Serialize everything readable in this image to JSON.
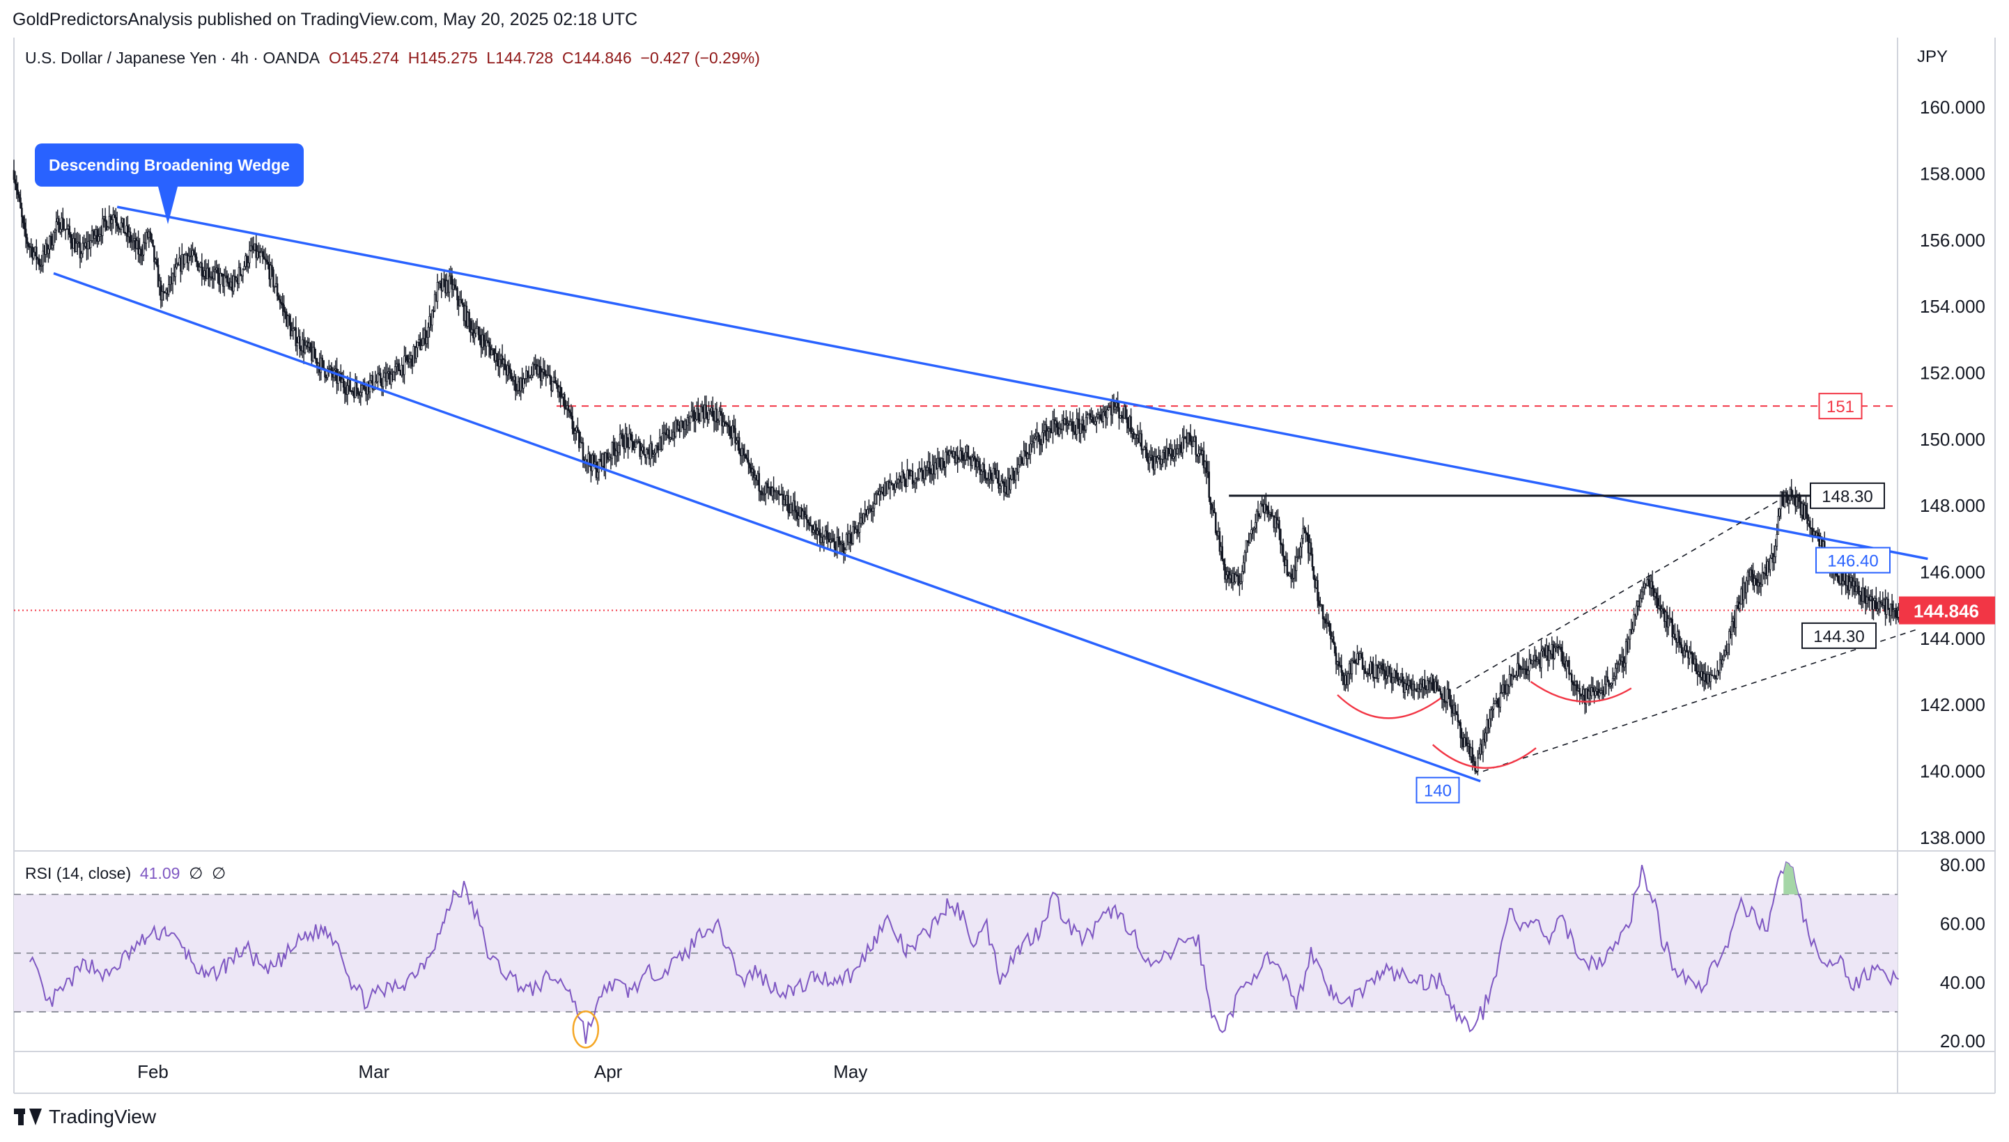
{
  "header": {
    "published": "GoldPredictorsAnalysis published on TradingView.com, May 20, 2025 02:18 UTC"
  },
  "legend": {
    "symbol": "U.S. Dollar / Japanese Yen · 4h · OANDA",
    "open": "O145.274",
    "high": "H145.275",
    "low": "L144.728",
    "close": "C144.846",
    "change": "−0.427 (−0.29%)"
  },
  "rsi_legend": {
    "label": "RSI (14, close)",
    "value": "41.09",
    "extra1": "∅",
    "extra2": "∅"
  },
  "price_axis": {
    "currency": "JPY"
  },
  "callout": {
    "text": "Descending Broadening Wedge"
  },
  "branding": {
    "logo_text": "TradingView"
  },
  "colors": {
    "up": "#089981",
    "down": "#f23645",
    "candle_body": "#131722",
    "wedge": "#2962ff",
    "resistance": "#131722",
    "dashed_level": "#f23645",
    "rsi_line": "#7e57c2",
    "rsi_band": "#ede7f6",
    "current_price": "#f23645",
    "rounded_bottom": "#f23645",
    "rsi_circle": "#f5a623",
    "rsi_overbought_fill": "#a5d6a7"
  },
  "chart_data": [
    {
      "type": "candlestick",
      "title": "U.S. Dollar / Japanese Yen · 4h · OANDA",
      "x_tick_labels": [
        "Feb",
        "Mar",
        "Apr",
        "May"
      ],
      "y_tick_labels": [
        "160.000",
        "158.000",
        "156.000",
        "154.000",
        "152.000",
        "150.000",
        "148.000",
        "146.000",
        "144.000",
        "142.000",
        "140.000",
        "138.000"
      ],
      "ylim": [
        137.6,
        162.1
      ],
      "last_price": 144.846,
      "last_price_label": "144.846",
      "path_points": [
        [
          0,
          158.1
        ],
        [
          8,
          156.1
        ],
        [
          20,
          155.3
        ],
        [
          35,
          156.6
        ],
        [
          50,
          155.6
        ],
        [
          75,
          156.8
        ],
        [
          95,
          155.6
        ],
        [
          102,
          156.2
        ],
        [
          112,
          154.2
        ],
        [
          130,
          155.6
        ],
        [
          145,
          155.1
        ],
        [
          165,
          154.6
        ],
        [
          180,
          155.7
        ],
        [
          192,
          155.2
        ],
        [
          210,
          153.2
        ],
        [
          235,
          152.1
        ],
        [
          255,
          151.5
        ],
        [
          280,
          151.8
        ],
        [
          300,
          152.4
        ],
        [
          312,
          153.2
        ],
        [
          320,
          154.5
        ],
        [
          330,
          154.7
        ],
        [
          345,
          153.4
        ],
        [
          365,
          152.5
        ],
        [
          380,
          151.6
        ],
        [
          395,
          152.1
        ],
        [
          410,
          151.6
        ],
        [
          420,
          150.6
        ],
        [
          430,
          149.6
        ],
        [
          440,
          149.1
        ],
        [
          460,
          150.0
        ],
        [
          480,
          149.6
        ],
        [
          500,
          150.3
        ],
        [
          510,
          150.5
        ],
        [
          520,
          150.9
        ],
        [
          530,
          150.7
        ],
        [
          545,
          150.1
        ],
        [
          555,
          149.0
        ],
        [
          570,
          148.4
        ],
        [
          590,
          147.9
        ],
        [
          610,
          147.1
        ],
        [
          625,
          146.7
        ],
        [
          640,
          147.5
        ],
        [
          660,
          148.6
        ],
        [
          680,
          148.9
        ],
        [
          700,
          149.3
        ],
        [
          720,
          149.6
        ],
        [
          735,
          149.0
        ],
        [
          750,
          148.6
        ],
        [
          770,
          149.9
        ],
        [
          785,
          150.4
        ],
        [
          800,
          150.3
        ],
        [
          815,
          150.6
        ],
        [
          830,
          151.0
        ],
        [
          840,
          150.7
        ],
        [
          850,
          150.0
        ],
        [
          860,
          149.3
        ],
        [
          875,
          149.6
        ],
        [
          890,
          150.0
        ],
        [
          900,
          149.3
        ],
        [
          905,
          148.0
        ],
        [
          915,
          146.0
        ],
        [
          925,
          145.6
        ],
        [
          935,
          147.4
        ],
        [
          945,
          148.1
        ],
        [
          955,
          147.3
        ],
        [
          965,
          145.6
        ],
        [
          975,
          147.5
        ],
        [
          985,
          145.3
        ],
        [
          995,
          144.0
        ],
        [
          1005,
          142.7
        ],
        [
          1015,
          143.4
        ],
        [
          1025,
          143.1
        ],
        [
          1040,
          142.9
        ],
        [
          1055,
          142.5
        ],
        [
          1070,
          142.7
        ],
        [
          1085,
          142.2
        ],
        [
          1095,
          140.8
        ],
        [
          1105,
          140.2
        ],
        [
          1115,
          141.6
        ],
        [
          1125,
          142.4
        ],
        [
          1135,
          143.0
        ],
        [
          1150,
          143.3
        ],
        [
          1165,
          143.7
        ],
        [
          1175,
          143.1
        ],
        [
          1185,
          142.2
        ],
        [
          1200,
          142.5
        ],
        [
          1215,
          143.2
        ],
        [
          1225,
          144.8
        ],
        [
          1235,
          145.8
        ],
        [
          1245,
          144.9
        ],
        [
          1255,
          144.1
        ],
        [
          1270,
          143.2
        ],
        [
          1280,
          142.7
        ],
        [
          1290,
          143.3
        ],
        [
          1300,
          144.6
        ],
        [
          1310,
          145.9
        ],
        [
          1320,
          145.6
        ],
        [
          1330,
          146.6
        ],
        [
          1335,
          148.2
        ],
        [
          1345,
          148.3
        ],
        [
          1355,
          147.6
        ],
        [
          1365,
          147.0
        ],
        [
          1375,
          146.0
        ],
        [
          1390,
          145.6
        ],
        [
          1400,
          145.2
        ],
        [
          1410,
          145.0
        ],
        [
          1424,
          144.8
        ]
      ],
      "wedge_upper": {
        "from": [
          78,
          157.0
        ],
        "to": [
          1446,
          146.4
        ],
        "label": "146.40"
      },
      "wedge_lower": {
        "from": [
          30,
          155.0
        ],
        "to": [
          1108,
          139.7
        ],
        "label": "140"
      },
      "resistance": {
        "from": [
          918,
          148.3
        ],
        "to": [
          1410,
          148.3
        ],
        "label": "148.30"
      },
      "dashed_level": {
        "from": [
          410,
          151.0
        ],
        "to": [
          1420,
          151.0
        ],
        "label": "151"
      },
      "channel_upper": {
        "from": [
          1090,
          142.5
        ],
        "to": [
          1335,
          148.2
        ]
      },
      "channel_lower": {
        "from": [
          1110,
          140.0
        ],
        "to": [
          1440,
          144.3
        ],
        "label": "144.30"
      },
      "rounded_bottoms": [
        {
          "from": [
            1000,
            142.3
          ],
          "bottom": [
            1035,
            141.6
          ],
          "to": [
            1078,
            142.2
          ]
        },
        {
          "from": [
            1072,
            140.8
          ],
          "bottom": [
            1110,
            140.1
          ],
          "to": [
            1150,
            140.7
          ]
        },
        {
          "from": [
            1146,
            142.7
          ],
          "bottom": [
            1185,
            142.1
          ],
          "to": [
            1222,
            142.5
          ]
        }
      ]
    },
    {
      "type": "line",
      "title": "RSI (14, close)",
      "current_value": 41.09,
      "ylim": [
        16.5,
        84.8
      ],
      "y_tick_labels": [
        "80.00",
        "60.00",
        "40.00",
        "20.00"
      ],
      "levels": [
        70,
        50,
        30
      ],
      "series": [
        {
          "name": "RSI (14, close)",
          "points": [
            [
              12,
              50
            ],
            [
              25,
              32
            ],
            [
              40,
              39
            ],
            [
              55,
              47
            ],
            [
              70,
              42
            ],
            [
              85,
              49
            ],
            [
              100,
              55
            ],
            [
              115,
              58
            ],
            [
              130,
              50
            ],
            [
              145,
              41
            ],
            [
              160,
              46
            ],
            [
              175,
              52
            ],
            [
              190,
              43
            ],
            [
              205,
              49
            ],
            [
              220,
              56
            ],
            [
              235,
              58
            ],
            [
              245,
              54
            ],
            [
              255,
              40
            ],
            [
              265,
              34
            ],
            [
              280,
              37
            ],
            [
              295,
              40
            ],
            [
              310,
              47
            ],
            [
              325,
              60
            ],
            [
              332,
              70
            ],
            [
              340,
              72
            ],
            [
              350,
              62
            ],
            [
              360,
              48
            ],
            [
              375,
              42
            ],
            [
              390,
              37
            ],
            [
              405,
              42
            ],
            [
              420,
              38
            ],
            [
              432,
              22
            ],
            [
              440,
              31
            ],
            [
              450,
              40
            ],
            [
              465,
              37
            ],
            [
              480,
              43
            ],
            [
              495,
              45
            ],
            [
              510,
              51
            ],
            [
              520,
              58
            ],
            [
              530,
              60
            ],
            [
              540,
              52
            ],
            [
              550,
              40
            ],
            [
              560,
              44
            ],
            [
              575,
              38
            ],
            [
              590,
              37
            ],
            [
              605,
              42
            ],
            [
              620,
              41
            ],
            [
              635,
              43
            ],
            [
              650,
              55
            ],
            [
              660,
              61
            ],
            [
              675,
              50
            ],
            [
              690,
              57
            ],
            [
              705,
              66
            ],
            [
              715,
              64
            ],
            [
              725,
              54
            ],
            [
              735,
              59
            ],
            [
              745,
              42
            ],
            [
              760,
              52
            ],
            [
              775,
              58
            ],
            [
              785,
              70
            ],
            [
              795,
              61
            ],
            [
              805,
              55
            ],
            [
              815,
              57
            ],
            [
              830,
              65
            ],
            [
              845,
              58
            ],
            [
              855,
              45
            ],
            [
              870,
              48
            ],
            [
              885,
              55
            ],
            [
              895,
              54
            ],
            [
              905,
              28
            ],
            [
              915,
              25
            ],
            [
              925,
              35
            ],
            [
              935,
              42
            ],
            [
              945,
              48
            ],
            [
              955,
              44
            ],
            [
              970,
              33
            ],
            [
              980,
              51
            ],
            [
              995,
              37
            ],
            [
              1005,
              32
            ],
            [
              1020,
              38
            ],
            [
              1035,
              44
            ],
            [
              1050,
              42
            ],
            [
              1065,
              40
            ],
            [
              1080,
              41
            ],
            [
              1090,
              28
            ],
            [
              1100,
              25
            ],
            [
              1110,
              30
            ],
            [
              1120,
              45
            ],
            [
              1130,
              65
            ],
            [
              1140,
              58
            ],
            [
              1150,
              60
            ],
            [
              1160,
              55
            ],
            [
              1170,
              61
            ],
            [
              1180,
              52
            ],
            [
              1190,
              46
            ],
            [
              1200,
              48
            ],
            [
              1210,
              52
            ],
            [
              1220,
              60
            ],
            [
              1230,
              78
            ],
            [
              1238,
              70
            ],
            [
              1245,
              55
            ],
            [
              1255,
              45
            ],
            [
              1265,
              42
            ],
            [
              1275,
              38
            ],
            [
              1285,
              47
            ],
            [
              1295,
              52
            ],
            [
              1305,
              66
            ],
            [
              1315,
              62
            ],
            [
              1325,
              60
            ],
            [
              1335,
              76
            ],
            [
              1342,
              82
            ],
            [
              1350,
              66
            ],
            [
              1360,
              52
            ],
            [
              1370,
              44
            ],
            [
              1380,
              48
            ],
            [
              1390,
              38
            ],
            [
              1400,
              43
            ],
            [
              1410,
              47
            ],
            [
              1418,
              41
            ],
            [
              1424,
              41.09
            ]
          ]
        }
      ]
    }
  ]
}
